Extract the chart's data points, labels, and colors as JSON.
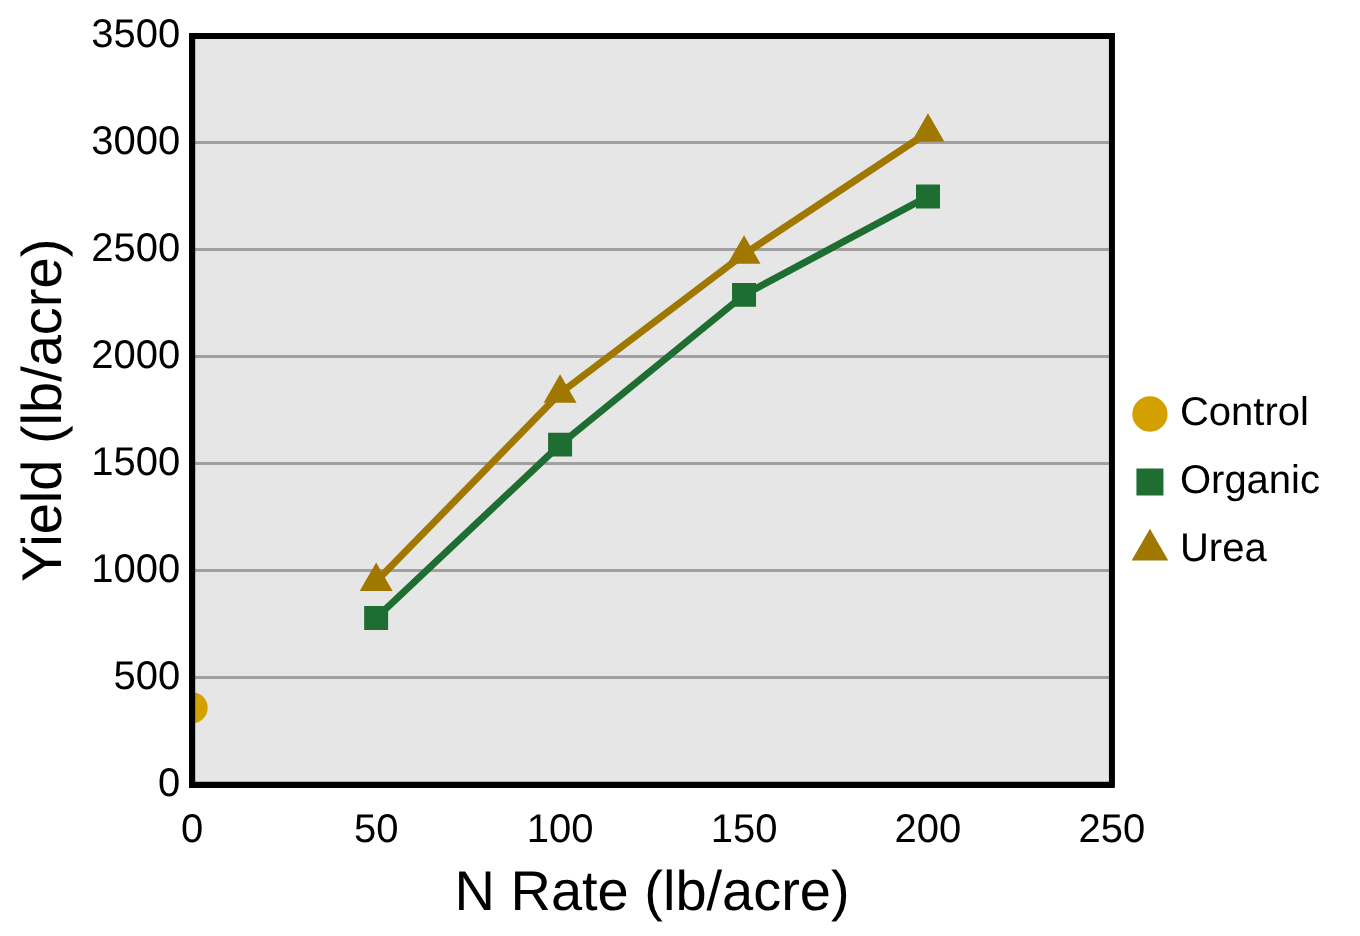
{
  "chart_data": {
    "type": "line",
    "xlabel": "N Rate (lb/acre)",
    "ylabel": "Yield (lb/acre)",
    "xlim": [
      0,
      250
    ],
    "xticks": [
      0,
      50,
      100,
      150,
      200,
      250
    ],
    "ylim": [
      0,
      3500
    ],
    "yticks": [
      0,
      500,
      1000,
      1500,
      2000,
      2500,
      3000,
      3500
    ],
    "grid": "y",
    "legend": "right",
    "series": [
      {
        "name": "Control",
        "type": "scatter",
        "marker": "circle",
        "color": "#d4a000",
        "x": [
          0
        ],
        "values": [
          360
        ]
      },
      {
        "name": "Organic",
        "type": "line",
        "marker": "square",
        "color": "#1e6e32",
        "x": [
          50,
          100,
          150,
          200
        ],
        "values": [
          780,
          1590,
          2290,
          2750
        ]
      },
      {
        "name": "Urea",
        "type": "line",
        "marker": "triangle",
        "color": "#a07800",
        "x": [
          50,
          100,
          150,
          200
        ],
        "values": [
          950,
          1830,
          2480,
          3050
        ]
      }
    ]
  }
}
